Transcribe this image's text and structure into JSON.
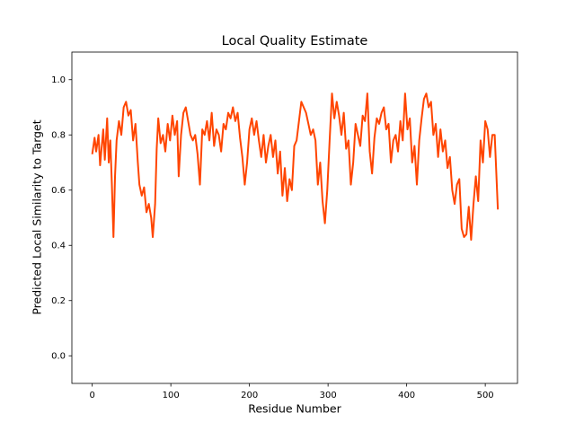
{
  "chart_data": {
    "type": "line",
    "title": "Local Quality Estimate",
    "xlabel": "Residue Number",
    "ylabel": "Predicted Local Similarity to Target",
    "series": [
      {
        "color": "#ff4500",
        "x": [
          0,
          3,
          5,
          8,
          10,
          14,
          16,
          19,
          21,
          23,
          25,
          27,
          29,
          31,
          34,
          37,
          40,
          43,
          46,
          49,
          52,
          55,
          58,
          60,
          63,
          66,
          69,
          72,
          75,
          77,
          80,
          82,
          84,
          87,
          90,
          93,
          96,
          99,
          102,
          105,
          108,
          110,
          113,
          116,
          119,
          122,
          125,
          128,
          131,
          134,
          137,
          140,
          143,
          146,
          149,
          152,
          155,
          158,
          161,
          164,
          167,
          170,
          173,
          176,
          179,
          182,
          185,
          188,
          191,
          194,
          197,
          200,
          203,
          206,
          209,
          212,
          215,
          218,
          221,
          224,
          227,
          230,
          233,
          236,
          239,
          242,
          245,
          248,
          251,
          254,
          257,
          260,
          263,
          266,
          269,
          272,
          275,
          278,
          281,
          284,
          287,
          290,
          293,
          296,
          299,
          302,
          305,
          308,
          311,
          314,
          317,
          320,
          323,
          326,
          329,
          332,
          335,
          338,
          341,
          344,
          347,
          350,
          353,
          356,
          359,
          362,
          365,
          368,
          371,
          374,
          377,
          380,
          383,
          386,
          389,
          392,
          395,
          398,
          401,
          404,
          407,
          410,
          413,
          416,
          419,
          422,
          425,
          428,
          431,
          434,
          437,
          440,
          443,
          446,
          449,
          452,
          455,
          458,
          461,
          464,
          467,
          470,
          473,
          476,
          479,
          482,
          485,
          488,
          491,
          494,
          497,
          500,
          503,
          506,
          509,
          512,
          516
        ],
        "values": [
          0.73,
          0.79,
          0.74,
          0.8,
          0.69,
          0.82,
          0.71,
          0.86,
          0.7,
          0.78,
          0.62,
          0.43,
          0.65,
          0.78,
          0.85,
          0.8,
          0.9,
          0.92,
          0.87,
          0.89,
          0.78,
          0.84,
          0.7,
          0.62,
          0.58,
          0.61,
          0.52,
          0.55,
          0.5,
          0.43,
          0.55,
          0.75,
          0.86,
          0.77,
          0.8,
          0.74,
          0.84,
          0.78,
          0.87,
          0.8,
          0.85,
          0.65,
          0.8,
          0.88,
          0.9,
          0.85,
          0.8,
          0.78,
          0.8,
          0.73,
          0.62,
          0.82,
          0.8,
          0.85,
          0.78,
          0.88,
          0.76,
          0.82,
          0.8,
          0.74,
          0.84,
          0.82,
          0.88,
          0.86,
          0.9,
          0.85,
          0.88,
          0.79,
          0.72,
          0.62,
          0.7,
          0.82,
          0.86,
          0.8,
          0.85,
          0.78,
          0.72,
          0.8,
          0.7,
          0.76,
          0.8,
          0.72,
          0.78,
          0.66,
          0.74,
          0.58,
          0.68,
          0.56,
          0.64,
          0.6,
          0.76,
          0.78,
          0.85,
          0.92,
          0.9,
          0.88,
          0.84,
          0.8,
          0.82,
          0.78,
          0.62,
          0.7,
          0.56,
          0.48,
          0.6,
          0.78,
          0.95,
          0.86,
          0.92,
          0.87,
          0.8,
          0.88,
          0.75,
          0.78,
          0.62,
          0.7,
          0.84,
          0.8,
          0.76,
          0.87,
          0.85,
          0.95,
          0.74,
          0.66,
          0.79,
          0.86,
          0.84,
          0.88,
          0.9,
          0.82,
          0.84,
          0.7,
          0.78,
          0.8,
          0.74,
          0.85,
          0.78,
          0.95,
          0.82,
          0.86,
          0.7,
          0.76,
          0.62,
          0.78,
          0.86,
          0.93,
          0.95,
          0.9,
          0.92,
          0.8,
          0.84,
          0.72,
          0.82,
          0.74,
          0.78,
          0.68,
          0.72,
          0.6,
          0.55,
          0.62,
          0.64,
          0.46,
          0.43,
          0.44,
          0.54,
          0.42,
          0.55,
          0.65,
          0.56,
          0.78,
          0.7,
          0.85,
          0.82,
          0.72,
          0.8,
          0.8,
          0.53
        ]
      }
    ],
    "xlim": [
      -25.9,
      541
    ],
    "xticks": [
      0,
      100,
      200,
      300,
      400,
      500
    ],
    "ylim": [
      -0.1,
      1.1
    ],
    "yticks": [
      {
        "value": 0,
        "label": "0.0"
      },
      0.2,
      0.4,
      0.6,
      0.8,
      {
        "value": 1,
        "label": "1.0"
      }
    ]
  }
}
